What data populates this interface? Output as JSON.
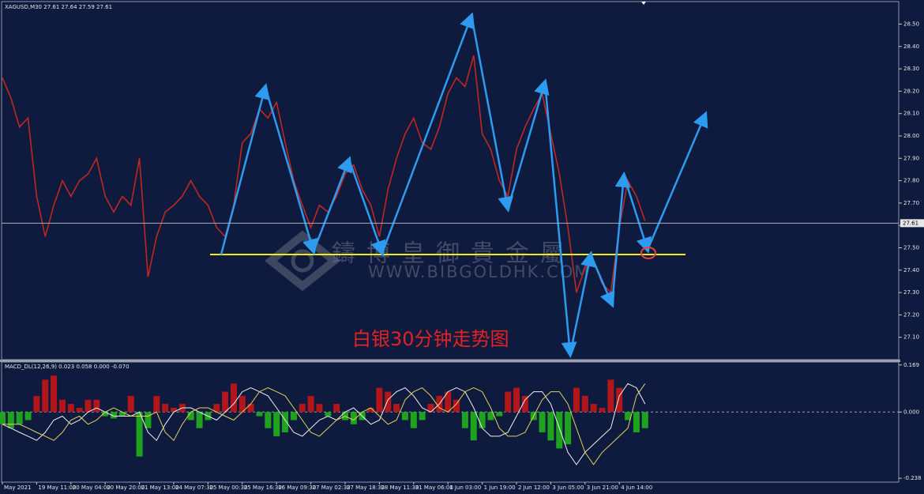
{
  "chart_data": [
    {
      "type": "line",
      "title": "XAGUSD,M30  27.61 27.64 27.59 27.61",
      "annotation": "白银30分钟走势图",
      "watermark": "鑄博皇御貴金屬",
      "watermark_url": "WWW.BIBGOLDHK.COM",
      "last_price": 27.61,
      "color": "#c0281e",
      "categories": [
        "May 2021",
        null,
        null,
        null,
        "19 May 11:00",
        null,
        null,
        null,
        "20 May 04:00",
        null,
        null,
        null,
        "20 May 20:00",
        null,
        null,
        null,
        "21 May 13:00",
        null,
        null,
        null,
        "24 May 07:30",
        null,
        null,
        null,
        "25 May 00:30",
        null,
        null,
        null,
        "25 May 16:30",
        null,
        null,
        null,
        "26 May 09:30",
        null,
        null,
        null,
        "27 May 02:30",
        null,
        null,
        null,
        "27 May 18:30",
        null,
        null,
        null,
        "28 May 11:30",
        null,
        null,
        null,
        "31 May 06:00",
        null,
        null,
        null,
        "1 Jun 03:00",
        null,
        null,
        null,
        "1 Jun 19:00",
        null,
        null,
        null,
        "2 Jun 12:00",
        null,
        null,
        null,
        "3 Jun 05:00",
        null,
        null,
        null,
        "3 Jun 21:00",
        null,
        null,
        null,
        "4 Jun 14:00",
        null,
        null,
        null
      ],
      "values": [
        28.26,
        28.17,
        28.04,
        28.08,
        27.73,
        27.55,
        27.69,
        27.8,
        27.73,
        27.8,
        27.83,
        27.9,
        27.73,
        27.66,
        27.73,
        27.69,
        27.9,
        27.37,
        27.55,
        27.66,
        27.69,
        27.73,
        27.8,
        27.73,
        27.69,
        27.59,
        27.55,
        27.69,
        27.97,
        28.01,
        28.12,
        28.08,
        28.15,
        27.97,
        27.8,
        27.69,
        27.59,
        27.69,
        27.66,
        27.73,
        27.83,
        27.87,
        27.76,
        27.69,
        27.55,
        27.76,
        27.9,
        28.01,
        28.08,
        27.97,
        27.94,
        28.04,
        28.19,
        28.26,
        28.22,
        28.36,
        28.01,
        27.94,
        27.8,
        27.73,
        27.94,
        28.04,
        28.12,
        28.19,
        28.01,
        27.83,
        27.59,
        27.3,
        27.41,
        27.44,
        27.34,
        27.3,
        27.59,
        27.8,
        27.73,
        27.62
      ],
      "ylim": [
        27.0,
        28.59
      ],
      "yticks": [
        {
          "value": 27.1,
          "label": "27.10"
        },
        {
          "value": 27.2,
          "label": "27.20"
        },
        {
          "value": 27.3,
          "label": "27.30"
        },
        {
          "value": 27.4,
          "label": "27.40"
        },
        {
          "value": 27.5,
          "label": "27.50"
        },
        {
          "value": 27.6,
          "label": "27.60"
        },
        {
          "value": 27.7,
          "label": "27.70"
        },
        {
          "value": 27.8,
          "label": "27.80"
        },
        {
          "value": 27.9,
          "label": "27.90"
        },
        {
          "value": 28.0,
          "label": "28.00"
        },
        {
          "value": 28.1,
          "label": "28.10"
        },
        {
          "value": 28.2,
          "label": "28.20"
        },
        {
          "value": 28.3,
          "label": "28.30"
        },
        {
          "value": 28.4,
          "label": "28.40"
        },
        {
          "value": 28.5,
          "label": "28.50"
        }
      ],
      "grid": false
    },
    {
      "type": "macd",
      "title": "MACD_DL(12,26,9) 0.023 0.058 0.000 -0.070",
      "up_color": "#b3161a",
      "down_color": "#1fa31f",
      "zero_line": true,
      "values": [
        -0.044,
        -0.058,
        -0.044,
        -0.029,
        0.058,
        0.116,
        0.131,
        0.044,
        0.029,
        0.015,
        0.044,
        0.044,
        -0.015,
        -0.023,
        -0.015,
        0.058,
        -0.16,
        -0.058,
        0.058,
        0.029,
        0.015,
        0.029,
        -0.029,
        -0.058,
        -0.029,
        0.029,
        0.073,
        0.102,
        0.058,
        0.029,
        -0.015,
        -0.058,
        -0.087,
        -0.073,
        -0.029,
        0.029,
        0.058,
        0.029,
        -0.015,
        0.029,
        -0.029,
        -0.044,
        -0.029,
        0.015,
        0.087,
        0.073,
        0.029,
        -0.029,
        -0.058,
        -0.029,
        0.029,
        0.058,
        0.073,
        0.044,
        -0.058,
        -0.102,
        -0.058,
        -0.029,
        -0.015,
        0.073,
        0.087,
        0.058,
        -0.029,
        -0.073,
        -0.102,
        -0.131,
        -0.116,
        0.087,
        0.058,
        0.029,
        0.015,
        0.116,
        0.087,
        -0.029,
        -0.073,
        -0.058
      ],
      "series": [
        {
          "color": "#f0f0f0",
          "values": [
            -0.044,
            -0.058,
            -0.073,
            -0.087,
            -0.102,
            -0.073,
            -0.029,
            -0.015,
            -0.044,
            -0.029,
            0,
            0.015,
            0,
            -0.015,
            -0.015,
            -0.015,
            0,
            -0.073,
            -0.102,
            -0.044,
            0,
            0.015,
            0.015,
            0,
            -0.015,
            -0.029,
            0,
            0.029,
            0.073,
            0.087,
            0.073,
            0.058,
            0.015,
            -0.029,
            -0.073,
            -0.087,
            -0.058,
            -0.029,
            -0.015,
            -0.029,
            0,
            0.015,
            -0.015,
            -0.044,
            -0.029,
            0.044,
            0.073,
            0.087,
            0.058,
            0.015,
            0,
            0.029,
            0.073,
            0.087,
            0.073,
            0.015,
            -0.058,
            -0.087,
            -0.087,
            -0.073,
            -0.015,
            0.044,
            0.073,
            0.073,
            0.029,
            -0.058,
            -0.145,
            -0.189,
            -0.145,
            -0.116,
            -0.087,
            -0.058,
            0.058,
            0.102,
            0.087,
            0.029
          ]
        },
        {
          "color": "#e2d35a",
          "values": [
            -0.044,
            -0.044,
            -0.044,
            -0.058,
            -0.073,
            -0.087,
            -0.102,
            -0.073,
            -0.029,
            -0.015,
            -0.044,
            -0.029,
            0,
            0.015,
            0,
            -0.015,
            -0.015,
            -0.015,
            0,
            -0.073,
            -0.102,
            -0.044,
            0,
            0.015,
            0.015,
            0,
            -0.015,
            -0.029,
            0,
            0.029,
            0.073,
            0.087,
            0.073,
            0.058,
            0.015,
            -0.029,
            -0.073,
            -0.087,
            -0.058,
            -0.029,
            -0.015,
            -0.029,
            0,
            0.015,
            -0.015,
            -0.044,
            -0.029,
            0.044,
            0.073,
            0.087,
            0.058,
            0.015,
            0,
            0.029,
            0.073,
            0.087,
            0.073,
            0.015,
            -0.058,
            -0.087,
            -0.087,
            -0.073,
            -0.015,
            0.044,
            0.073,
            0.073,
            0.029,
            -0.058,
            -0.145,
            -0.189,
            -0.145,
            -0.116,
            -0.087,
            -0.058,
            0.058,
            0.102
          ]
        }
      ],
      "ylim": [
        -0.252,
        0.174
      ],
      "yticks": [
        0.169,
        {
          "value": 0,
          "label": "0.000"
        },
        -0.238
      ]
    }
  ]
}
